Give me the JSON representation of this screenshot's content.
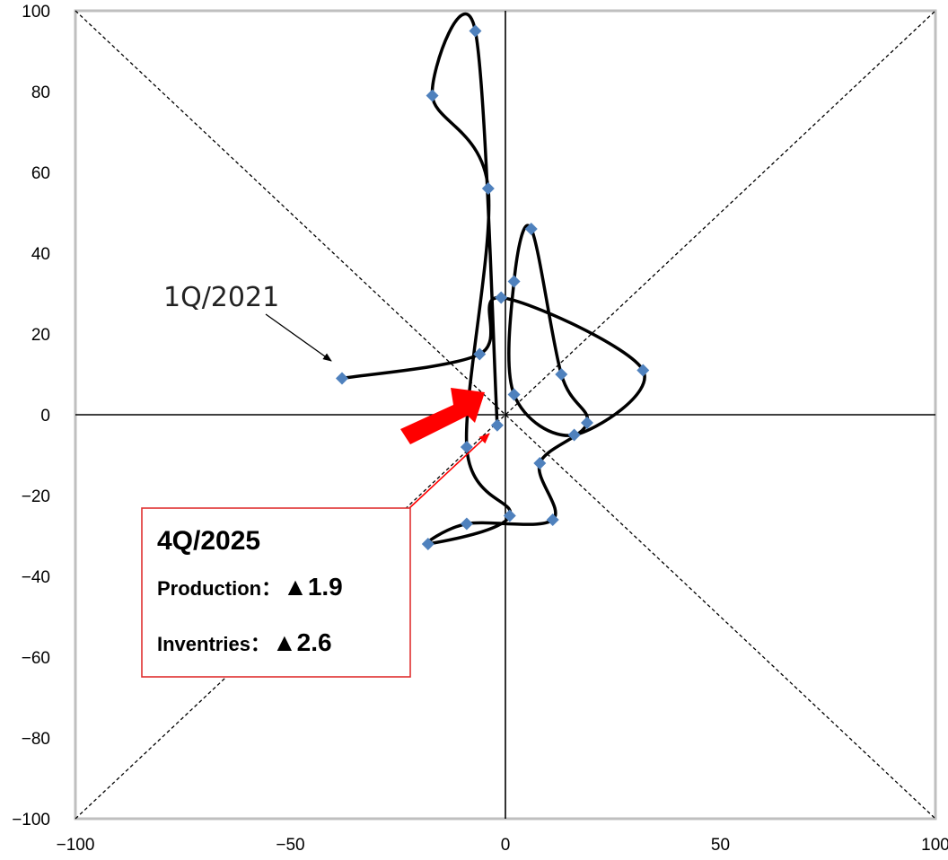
{
  "chart_data": {
    "type": "scatter",
    "title": "",
    "xlabel": "",
    "ylabel": "",
    "xlim": [
      -100,
      100
    ],
    "ylim": [
      -100,
      100
    ],
    "x_ticks": [
      "−100",
      "−50",
      "0",
      "50",
      "100"
    ],
    "y_ticks": [
      "100",
      "80",
      "60",
      "40",
      "20",
      "0",
      "−20",
      "−40",
      "−60",
      "−80",
      "−100"
    ],
    "grid": false,
    "diagonal_reference_lines": true,
    "series": [
      {
        "name": "",
        "color": "#4F81BD",
        "line_color": "#000000",
        "points": [
          {
            "x": -38,
            "y": 9
          },
          {
            "x": -6,
            "y": 15
          },
          {
            "x": -1,
            "y": 29
          },
          {
            "x": 32,
            "y": 11
          },
          {
            "x": 16,
            "y": -5
          },
          {
            "x": 2,
            "y": 5
          },
          {
            "x": 2,
            "y": 33
          },
          {
            "x": 6,
            "y": 46
          },
          {
            "x": 13,
            "y": 10
          },
          {
            "x": 19,
            "y": -2
          },
          {
            "x": 8,
            "y": -12
          },
          {
            "x": 11,
            "y": -26
          },
          {
            "x": -9,
            "y": -27
          },
          {
            "x": -18,
            "y": -32
          },
          {
            "x": 1,
            "y": -25
          },
          {
            "x": -9,
            "y": -8
          },
          {
            "x": -4,
            "y": 56
          },
          {
            "x": -17,
            "y": 79
          },
          {
            "x": -7,
            "y": 95
          },
          {
            "x": -1.9,
            "y": -2.6
          }
        ]
      }
    ],
    "annotations": [
      {
        "label": "1Q/2021",
        "x": -38,
        "y": 9
      },
      {
        "label": "4Q/2025",
        "x": -1.9,
        "y": -2.6,
        "production_label": "Production：",
        "production_value": "▲1.9",
        "inventories_label": "Inventries：",
        "inventories_value": "▲2.6"
      }
    ],
    "highlight_arrow_color": "#FF0000"
  }
}
